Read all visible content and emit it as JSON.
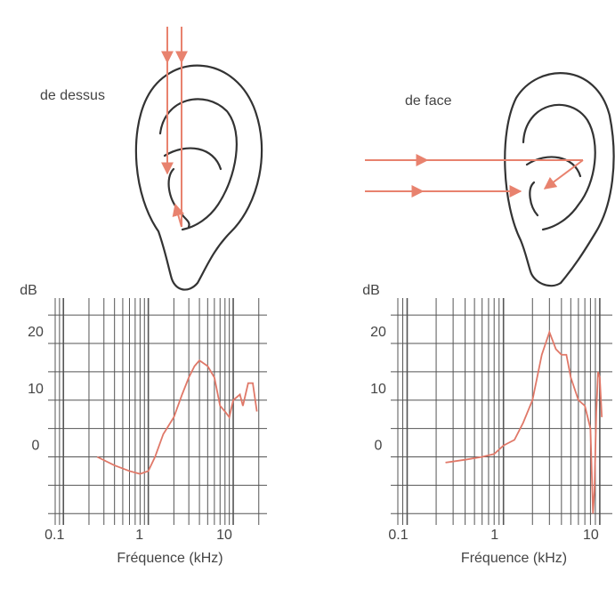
{
  "chart_data": [
    {
      "type": "line",
      "title": "de dessus",
      "y_label": "dB",
      "x_label": "Fréquence (kHz)",
      "log_x": true,
      "grid": true,
      "color": "#e07868",
      "x": [
        0.25,
        0.4,
        0.6,
        0.8,
        1.0,
        1.2,
        1.5,
        2.0,
        2.5,
        3.0,
        3.5,
        4.0,
        5.0,
        6.0,
        7.0,
        8.0,
        9.0,
        10.0,
        12.0,
        13.0,
        15.0,
        17.0,
        19.0
      ],
      "y": [
        0,
        -1.5,
        -2.5,
        -3,
        -2.5,
        0,
        4,
        7,
        11,
        14,
        16,
        17,
        16,
        14,
        9,
        8,
        7,
        10,
        11,
        9,
        13,
        13,
        8
      ],
      "xlim": [
        0.08,
        25
      ],
      "ylim": [
        -12,
        28
      ],
      "xticks": [
        0.1,
        1,
        10
      ],
      "yticks": [
        0,
        10,
        20
      ]
    },
    {
      "type": "line",
      "title": "de face",
      "y_label": "dB",
      "x_label": "Fréquence (kHz)",
      "log_x": true,
      "grid": true,
      "color": "#e07868",
      "x": [
        0.25,
        0.4,
        0.6,
        0.8,
        1.0,
        1.3,
        1.6,
        2.0,
        2.5,
        3.0,
        3.5,
        4.0,
        4.5,
        5.0,
        6.0,
        7.0,
        8.0,
        8.5,
        8.8,
        9.2,
        9.6,
        10.0,
        10.5
      ],
      "y": [
        -1,
        -0.5,
        0,
        0.5,
        2,
        3,
        6,
        10,
        18,
        22,
        19,
        18,
        18,
        14,
        10,
        9,
        5,
        -10,
        -6,
        8,
        15,
        14,
        7
      ],
      "xlim": [
        0.08,
        13.5
      ],
      "ylim": [
        -12,
        28
      ],
      "xticks": [
        0.1,
        1,
        10
      ],
      "yticks": [
        0,
        10,
        20
      ]
    }
  ]
}
